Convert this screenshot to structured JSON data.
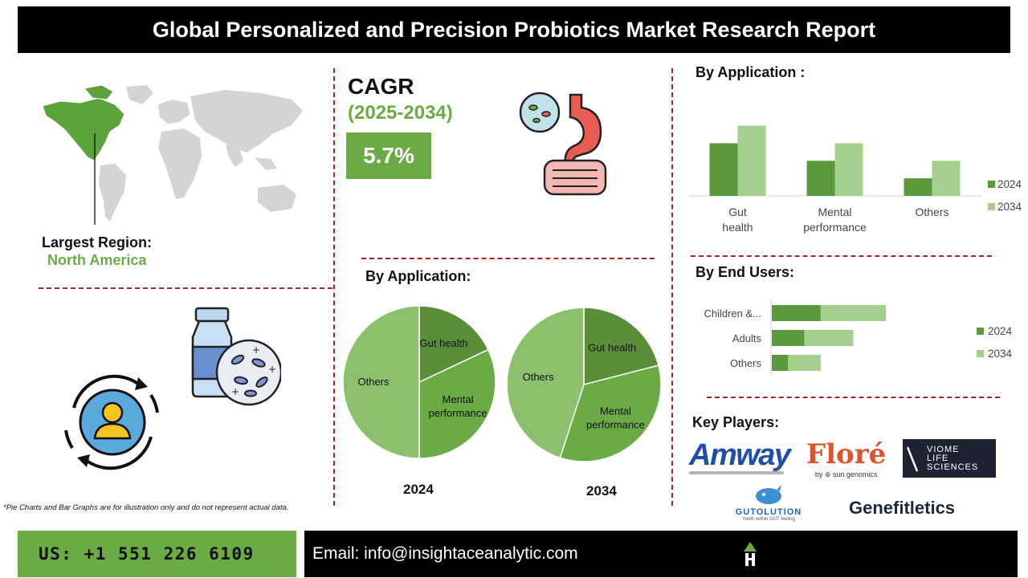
{
  "title": "Global Personalized and Precision Probiotics Market Research Report",
  "region": {
    "label": "Largest Region:",
    "value": "North America"
  },
  "cagr": {
    "label": "CAGR",
    "period": "(2025-2034)",
    "value": "5.7%"
  },
  "note": "*Pie Charts and Bar Graphs are for illustration only and do not represent actual data.",
  "footer": {
    "phone": "US: +1 551 226 6109",
    "email": "Email: info@insightaceanalytic.com"
  },
  "key_players": {
    "heading": "Key Players:",
    "logos": [
      {
        "name": "Amway"
      },
      {
        "name": "Floré",
        "sub": "by ⊛ sun genomics"
      },
      {
        "name": "VIOME LIFE SCIENCES",
        "lines": [
          "VIOME",
          "LIFE",
          "SCIENCES"
        ]
      },
      {
        "name": "GUTOLUTION",
        "sub": "Youth within GUT feeling"
      },
      {
        "name": "Genefitletics"
      }
    ]
  },
  "colors": {
    "accent_green": "#6aab45",
    "dark_green": "#5a9a3c",
    "light_green": "#a5cf8d",
    "divider_red": "#b02020"
  },
  "icons": [
    "world-map-icon",
    "stomach-bacteria-icon",
    "probiotic-bottle-icon",
    "user-cycle-icon"
  ],
  "chart_data": [
    {
      "type": "bar",
      "title": "By Application :",
      "categories": [
        "Gut health",
        "Mental performance",
        "Others"
      ],
      "series": [
        {
          "name": "2024",
          "values": [
            3,
            2,
            1
          ],
          "color": "#5a9a3c"
        },
        {
          "name": "2034",
          "values": [
            4,
            3,
            2
          ],
          "color": "#a5cf8d"
        }
      ],
      "ylim": [
        0,
        4.3
      ],
      "grid": false,
      "legend": "right"
    },
    {
      "type": "bar",
      "orientation": "horizontal",
      "stacked": true,
      "title": "By End Users:",
      "categories": [
        "Children &...",
        "Adults",
        "Others"
      ],
      "series": [
        {
          "name": "2024",
          "values": [
            3,
            2,
            1
          ],
          "color": "#5a9a3c"
        },
        {
          "name": "2034",
          "values": [
            4,
            3,
            2
          ],
          "color": "#a5cf8d"
        }
      ],
      "xlim": [
        0,
        7.5
      ],
      "legend": "right"
    },
    {
      "type": "pie",
      "title": "By Application:",
      "year_labels": [
        "2024",
        "2034"
      ],
      "pies": [
        {
          "year": "2024",
          "slices": [
            {
              "label": "Gut health",
              "value": 18,
              "color": "#5a8f3a"
            },
            {
              "label": "Mental performance",
              "value": 32,
              "color": "#6aab45"
            },
            {
              "label": "Others",
              "value": 50,
              "color": "#8cc06c"
            }
          ]
        },
        {
          "year": "2034",
          "slices": [
            {
              "label": "Gut health",
              "value": 21,
              "color": "#5a8f3a"
            },
            {
              "label": "Mental performance",
              "value": 34,
              "color": "#6aab45"
            },
            {
              "label": "Others",
              "value": 45,
              "color": "#8cc06c"
            }
          ]
        }
      ]
    }
  ]
}
